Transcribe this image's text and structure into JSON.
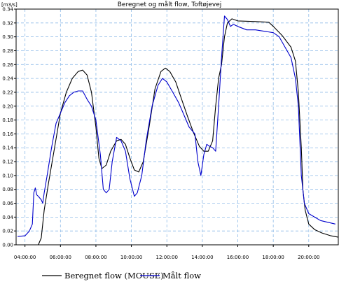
{
  "chart_data": {
    "type": "line",
    "title": "Beregnet og målt flow, Toftøjevej",
    "ylabel": "[m3/s]",
    "xlabel": "",
    "ylim": [
      0,
      0.34
    ],
    "xlim": [
      "03:30",
      "21:40"
    ],
    "grid": true,
    "legend_placement": "bottom",
    "y_ticks": [
      "0.00",
      "0.02",
      "0.04",
      "0.06",
      "0.08",
      "0.10",
      "0.12",
      "0.14",
      "0.16",
      "0.18",
      "0.20",
      "0.22",
      "0.24",
      "0.26",
      "0.28",
      "0.30",
      "0.32",
      "0.34"
    ],
    "x_ticks": [
      "04:00:00",
      "06:00:00",
      "08:00:00",
      "10:00:00",
      "12:00:00",
      "14:00:00",
      "16:00:00",
      "18:00:00",
      "20:00:00"
    ],
    "series": [
      {
        "name": "Beregnet flow (MOUSE)",
        "color": "#000000",
        "points": [
          [
            "03:30",
            0.0
          ],
          [
            "04:00",
            0.0
          ],
          [
            "04:45",
            0.0
          ],
          [
            "04:55",
            0.01
          ],
          [
            "05:05",
            0.05
          ],
          [
            "05:20",
            0.09
          ],
          [
            "05:40",
            0.14
          ],
          [
            "06:00",
            0.19
          ],
          [
            "06:20",
            0.22
          ],
          [
            "06:40",
            0.24
          ],
          [
            "07:00",
            0.25
          ],
          [
            "07:15",
            0.252
          ],
          [
            "07:30",
            0.245
          ],
          [
            "07:45",
            0.22
          ],
          [
            "08:00",
            0.17
          ],
          [
            "08:10",
            0.125
          ],
          [
            "08:20",
            0.11
          ],
          [
            "08:35",
            0.115
          ],
          [
            "08:50",
            0.135
          ],
          [
            "09:10",
            0.15
          ],
          [
            "09:25",
            0.152
          ],
          [
            "09:40",
            0.145
          ],
          [
            "09:55",
            0.125
          ],
          [
            "10:10",
            0.108
          ],
          [
            "10:25",
            0.105
          ],
          [
            "10:40",
            0.12
          ],
          [
            "11:00",
            0.17
          ],
          [
            "11:20",
            0.225
          ],
          [
            "11:40",
            0.25
          ],
          [
            "11:55",
            0.255
          ],
          [
            "12:10",
            0.25
          ],
          [
            "12:30",
            0.235
          ],
          [
            "12:50",
            0.21
          ],
          [
            "13:10",
            0.185
          ],
          [
            "13:30",
            0.162
          ],
          [
            "13:50",
            0.142
          ],
          [
            "14:05",
            0.135
          ],
          [
            "14:20",
            0.135
          ],
          [
            "14:35",
            0.15
          ],
          [
            "14:45",
            0.2
          ],
          [
            "14:55",
            0.24
          ],
          [
            "15:05",
            0.26
          ],
          [
            "15:15",
            0.3
          ],
          [
            "15:25",
            0.32
          ],
          [
            "15:40",
            0.326
          ],
          [
            "16:00",
            0.323
          ],
          [
            "17:00",
            0.322
          ],
          [
            "17:45",
            0.321
          ],
          [
            "18:00",
            0.315
          ],
          [
            "18:30",
            0.302
          ],
          [
            "19:00",
            0.285
          ],
          [
            "19:15",
            0.265
          ],
          [
            "19:25",
            0.22
          ],
          [
            "19:35",
            0.14
          ],
          [
            "19:40",
            0.08
          ],
          [
            "19:48",
            0.05
          ],
          [
            "20:00",
            0.03
          ],
          [
            "20:20",
            0.022
          ],
          [
            "20:45",
            0.017
          ],
          [
            "21:15",
            0.013
          ],
          [
            "21:40",
            0.011
          ]
        ]
      },
      {
        "name": "Målt flow",
        "color": "#0000cc",
        "points": [
          [
            "03:35",
            0.012
          ],
          [
            "04:00",
            0.013
          ],
          [
            "04:15",
            0.02
          ],
          [
            "04:25",
            0.03
          ],
          [
            "04:30",
            0.075
          ],
          [
            "04:35",
            0.082
          ],
          [
            "04:40",
            0.072
          ],
          [
            "04:45",
            0.07
          ],
          [
            "04:55",
            0.065
          ],
          [
            "05:00",
            0.06
          ],
          [
            "05:05",
            0.075
          ],
          [
            "05:15",
            0.1
          ],
          [
            "05:30",
            0.14
          ],
          [
            "05:45",
            0.175
          ],
          [
            "06:00",
            0.19
          ],
          [
            "06:15",
            0.205
          ],
          [
            "06:30",
            0.215
          ],
          [
            "06:45",
            0.22
          ],
          [
            "07:00",
            0.222
          ],
          [
            "07:15",
            0.222
          ],
          [
            "07:30",
            0.21
          ],
          [
            "07:45",
            0.2
          ],
          [
            "08:00",
            0.18
          ],
          [
            "08:15",
            0.13
          ],
          [
            "08:25",
            0.08
          ],
          [
            "08:35",
            0.075
          ],
          [
            "08:45",
            0.08
          ],
          [
            "08:55",
            0.12
          ],
          [
            "09:10",
            0.155
          ],
          [
            "09:25",
            0.15
          ],
          [
            "09:40",
            0.135
          ],
          [
            "09:55",
            0.095
          ],
          [
            "10:10",
            0.07
          ],
          [
            "10:20",
            0.075
          ],
          [
            "10:35",
            0.1
          ],
          [
            "10:50",
            0.15
          ],
          [
            "11:10",
            0.2
          ],
          [
            "11:30",
            0.23
          ],
          [
            "11:45",
            0.24
          ],
          [
            "12:00",
            0.235
          ],
          [
            "12:20",
            0.22
          ],
          [
            "12:40",
            0.205
          ],
          [
            "13:00",
            0.185
          ],
          [
            "13:15",
            0.17
          ],
          [
            "13:25",
            0.165
          ],
          [
            "13:35",
            0.16
          ],
          [
            "13:45",
            0.12
          ],
          [
            "13:55",
            0.1
          ],
          [
            "14:05",
            0.13
          ],
          [
            "14:15",
            0.145
          ],
          [
            "14:25",
            0.142
          ],
          [
            "14:35",
            0.14
          ],
          [
            "14:45",
            0.135
          ],
          [
            "14:55",
            0.2
          ],
          [
            "15:05",
            0.27
          ],
          [
            "15:15",
            0.33
          ],
          [
            "15:25",
            0.325
          ],
          [
            "15:35",
            0.315
          ],
          [
            "15:45",
            0.318
          ],
          [
            "16:00",
            0.315
          ],
          [
            "16:30",
            0.31
          ],
          [
            "17:00",
            0.31
          ],
          [
            "17:30",
            0.308
          ],
          [
            "18:00",
            0.306
          ],
          [
            "18:20",
            0.3
          ],
          [
            "18:40",
            0.285
          ],
          [
            "19:00",
            0.27
          ],
          [
            "19:15",
            0.24
          ],
          [
            "19:25",
            0.2
          ],
          [
            "19:35",
            0.1
          ],
          [
            "19:45",
            0.06
          ],
          [
            "20:00",
            0.045
          ],
          [
            "20:20",
            0.04
          ],
          [
            "20:40",
            0.035
          ],
          [
            "21:00",
            0.033
          ],
          [
            "21:20",
            0.031
          ],
          [
            "21:30",
            0.03
          ]
        ]
      }
    ]
  }
}
